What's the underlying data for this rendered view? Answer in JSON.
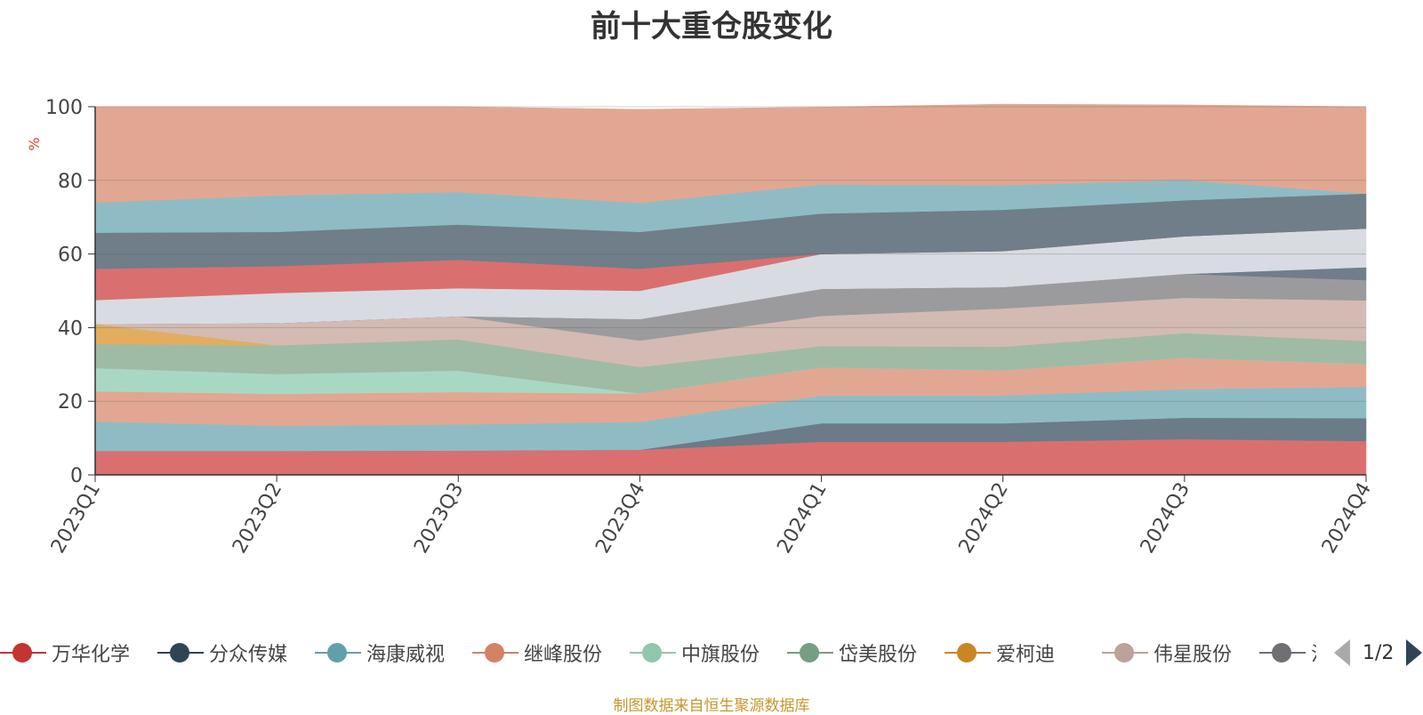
{
  "chart_data": {
    "type": "area",
    "stacked": true,
    "title": "前十大重仓股变化",
    "ylabel": "%",
    "ylim": [
      0,
      100
    ],
    "yticks": [
      0,
      20,
      40,
      60,
      80,
      100
    ],
    "grid": true,
    "x": [
      "2023Q1",
      "2023Q2",
      "2023Q3",
      "2023Q4",
      "2024Q1",
      "2024Q2",
      "2024Q3",
      "2024Q4"
    ],
    "series": [
      {
        "name": "万华化学",
        "color": "#d9706f",
        "values": [
          6.5,
          6.5,
          6.6,
          6.8,
          9.0,
          9.0,
          9.7,
          9.2
        ]
      },
      {
        "name": "分众传媒",
        "color": "#6b7b87",
        "values": [
          0,
          0,
          0,
          0,
          5.0,
          5.0,
          5.8,
          6.2
        ]
      },
      {
        "name": "海康威视",
        "color": "#8fbcc4",
        "values": [
          8.0,
          6.8,
          7.1,
          7.6,
          7.5,
          7.6,
          7.8,
          8.5
        ]
      },
      {
        "name": "继峰股份",
        "color": "#e2a792",
        "values": [
          8.2,
          8.7,
          8.8,
          7.7,
          7.7,
          6.8,
          8.5,
          6.2
        ]
      },
      {
        "name": "中旗股份",
        "color": "#a8d8c4",
        "values": [
          6.3,
          5.4,
          5.8,
          0,
          0,
          0,
          0,
          0
        ]
      },
      {
        "name": "岱美股份",
        "color": "#9fbba5",
        "values": [
          6.5,
          7.8,
          8.5,
          7.2,
          5.8,
          6.4,
          6.7,
          6.3
        ]
      },
      {
        "name": "爱柯迪",
        "color": "#e2ad5e",
        "values": [
          5.5,
          0,
          0,
          0,
          0,
          0,
          0,
          0
        ]
      },
      {
        "name": "伟星股份",
        "color": "#d3bbb3",
        "values": [
          0,
          6.0,
          6.3,
          7.2,
          8.2,
          10.4,
          9.6,
          11.0
        ]
      },
      {
        "name": "洽洽食品",
        "color": "#9b9b9e",
        "values": [
          0,
          0,
          0,
          5.8,
          7.3,
          5.8,
          6.5,
          5.5
        ]
      },
      {
        "name": "",
        "color": "#6f7e89",
        "values": [
          0,
          0,
          0,
          0,
          0,
          0,
          0,
          3.5
        ]
      },
      {
        "name": "",
        "color": "#d8dce2",
        "values": [
          6.5,
          8.2,
          7.6,
          7.7,
          9.5,
          9.8,
          10.2,
          10.5
        ]
      },
      {
        "name": "",
        "color": "#d9706f",
        "values": [
          8.5,
          7.3,
          7.7,
          6.0,
          0,
          0,
          0,
          0
        ]
      },
      {
        "name": "",
        "color": "#6f7e89",
        "values": [
          9.8,
          9.3,
          9.6,
          10.0,
          11.0,
          11.2,
          9.8,
          9.5
        ]
      },
      {
        "name": "",
        "color": "#8fbcc4",
        "values": [
          8.2,
          9.9,
          8.8,
          7.9,
          7.9,
          6.7,
          5.5,
          0
        ]
      },
      {
        "name": "",
        "color": "#e2a792",
        "values": [
          26.0,
          24.1,
          23.2,
          25.4,
          21.0,
          22.0,
          20.4,
          23.6
        ]
      }
    ]
  },
  "legend": {
    "items": [
      {
        "label": "万华化学",
        "color": "#c23531"
      },
      {
        "label": "分众传媒",
        "color": "#2f4554"
      },
      {
        "label": "海康威视",
        "color": "#61a0a8"
      },
      {
        "label": "继峰股份",
        "color": "#d48265"
      },
      {
        "label": "中旗股份",
        "color": "#91c7ae"
      },
      {
        "label": "岱美股份",
        "color": "#749f83"
      },
      {
        "label": "爱柯迪",
        "color": "#ca8622"
      },
      {
        "label": "伟星股份",
        "color": "#bda29a"
      },
      {
        "label": "洽洽食品",
        "color": "#6e7074"
      }
    ],
    "page_text": "1/2"
  },
  "source_note": "制图数据来自恒生聚源数据库",
  "colors": {
    "title": "#333333",
    "axis": "#333333",
    "ylabel": "#e0402e",
    "source": "#c8962c"
  }
}
